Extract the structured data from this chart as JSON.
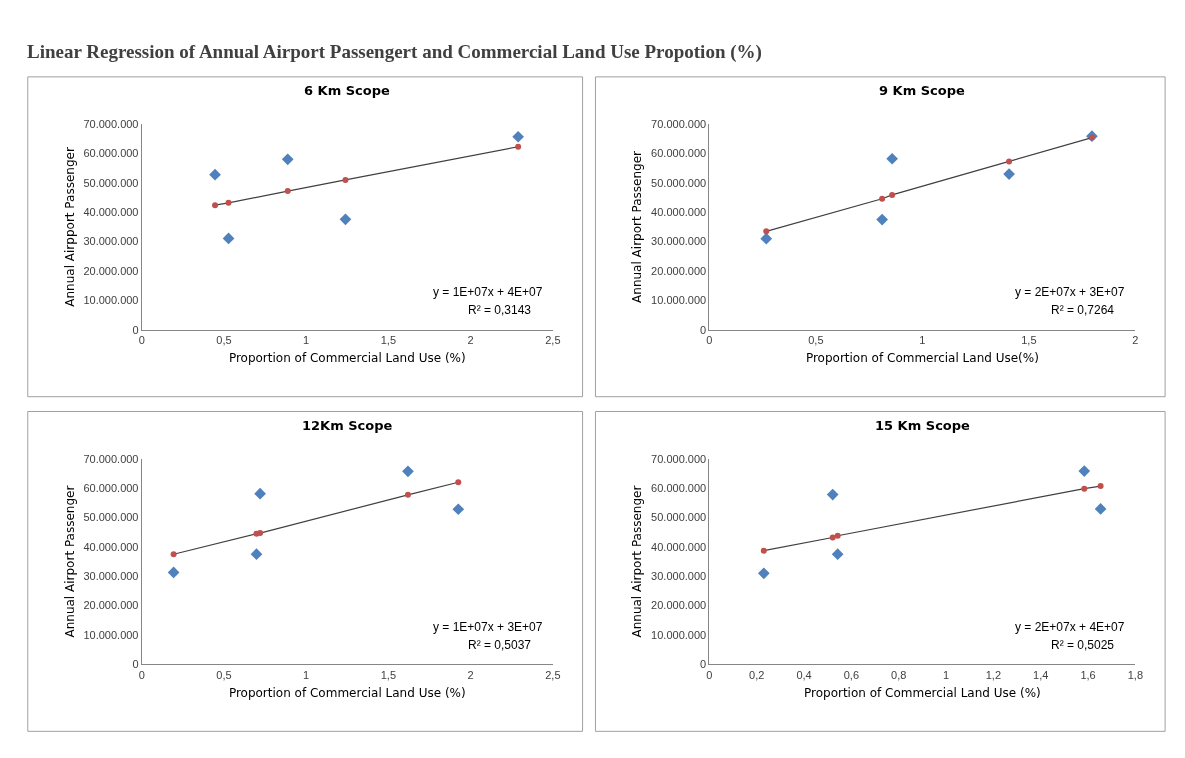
{
  "chart_data": [
    {
      "type": "scatter",
      "title": "6 Km Scope",
      "xlabel": "Proportion of Commercial Land Use (%)",
      "ylabel": "Annual Airpport Passenger",
      "annotations": [
        "Linear Regression of Annual Airport Passengert and Commercial Land Use Propotion (%)",
        "y = 1E+07x + 4E+07",
        "R² = 0,3143"
      ],
      "series": [
        {
          "color": "#4f81bd",
          "marker": "diamond",
          "x": [
            0.446,
            0.528,
            0.888,
            1.239,
            2.289
          ],
          "values": [
            52800000,
            31100000,
            58000000,
            37600000,
            65700000
          ]
        },
        {
          "type": "line",
          "color": "#c0504d",
          "marker": "circle",
          "x": [
            0.446,
            0.528,
            0.888,
            1.239,
            2.289
          ],
          "values": [
            42400000,
            43200000,
            47200000,
            51000000,
            62300000
          ]
        }
      ],
      "xlim": [
        0,
        2.5
      ],
      "xticks": [
        0,
        {
          "value": 0.5,
          "label": "0,5"
        },
        1,
        {
          "value": 1.5,
          "label": "1,5"
        },
        2,
        {
          "value": 2.5,
          "label": "2,5"
        }
      ],
      "ylim": [
        0,
        70000000
      ],
      "yticks": [
        0,
        {
          "value": 10000000,
          "label": "10.000.000"
        },
        {
          "value": 20000000,
          "label": "20.000.000"
        },
        {
          "value": 30000000,
          "label": "30.000.000"
        },
        {
          "value": 40000000,
          "label": "40.000.000"
        },
        {
          "value": 50000000,
          "label": "50.000.000"
        },
        {
          "value": 60000000,
          "label": "60.000.000"
        },
        {
          "value": 70000000,
          "label": "70.000.000"
        }
      ]
    },
    {
      "type": "scatter",
      "title": "9 Km Scope",
      "xlabel": "Proportion of Commercial Land Use(%)",
      "ylabel": "Annual Airport Passenger",
      "annotations": [
        "y = 2E+07x + 3E+07",
        "R² = 0,7264"
      ],
      "series": [
        {
          "color": "#4f81bd",
          "marker": "diamond",
          "x": [
            0.267,
            0.811,
            0.858,
            1.407,
            1.796
          ],
          "values": [
            31000000,
            37500000,
            58200000,
            53000000,
            65900000
          ]
        },
        {
          "type": "line",
          "color": "#c0504d",
          "marker": "circle",
          "x": [
            0.267,
            0.811,
            0.858,
            1.407,
            1.796
          ],
          "values": [
            33500000,
            44600000,
            45900000,
            57300000,
            65400000
          ]
        }
      ],
      "xlim": [
        0,
        2
      ],
      "xticks": [
        0,
        {
          "value": 0.5,
          "label": "0,5"
        },
        1,
        {
          "value": 1.5,
          "label": "1,5"
        },
        2
      ],
      "ylim": [
        0,
        70000000
      ],
      "yticks": [
        0,
        {
          "value": 10000000,
          "label": "10.000.000"
        },
        {
          "value": 20000000,
          "label": "20.000.000"
        },
        {
          "value": 30000000,
          "label": "30.000.000"
        },
        {
          "value": 40000000,
          "label": "40.000.000"
        },
        {
          "value": 50000000,
          "label": "50.000.000"
        },
        {
          "value": 60000000,
          "label": "60.000.000"
        },
        {
          "value": 70000000,
          "label": "70.000.000"
        }
      ]
    },
    {
      "type": "scatter",
      "title": "12Km Scope",
      "xlabel": "Proportion of Commercial Land Use (%)",
      "ylabel": "Annual Airport Passenger",
      "annotations": [
        "y = 1E+07x + 3E+07",
        "R² = 0,5037"
      ],
      "series": [
        {
          "color": "#4f81bd",
          "marker": "diamond",
          "x": [
            0.194,
            0.698,
            0.72,
            1.619,
            1.925
          ],
          "values": [
            31300000,
            37500000,
            58100000,
            65700000,
            52800000
          ]
        },
        {
          "type": "line",
          "color": "#c0504d",
          "marker": "circle",
          "x": [
            0.194,
            0.698,
            0.72,
            1.619,
            1.925
          ],
          "values": [
            37500000,
            44500000,
            44700000,
            57700000,
            62000000
          ]
        }
      ],
      "xlim": [
        0,
        2.5
      ],
      "xticks": [
        0,
        {
          "value": 0.5,
          "label": "0,5"
        },
        1,
        {
          "value": 1.5,
          "label": "1,5"
        },
        2,
        {
          "value": 2.5,
          "label": "2,5"
        }
      ],
      "ylim": [
        0,
        70000000
      ],
      "yticks": [
        0,
        {
          "value": 10000000,
          "label": "10.000.000"
        },
        {
          "value": 20000000,
          "label": "20.000.000"
        },
        {
          "value": 30000000,
          "label": "30.000.000"
        },
        {
          "value": 40000000,
          "label": "40.000.000"
        },
        {
          "value": 50000000,
          "label": "50.000.000"
        },
        {
          "value": 60000000,
          "label": "60.000.000"
        },
        {
          "value": 70000000,
          "label": "70.000.000"
        }
      ]
    },
    {
      "type": "scatter",
      "title": "15 Km Scope",
      "xlabel": "Proportion of Commercial Land Use (%)",
      "ylabel": "Annual Airport Passenger",
      "annotations": [
        "y = 2E+07x + 4E+07",
        "R² = 0,5025"
      ],
      "series": [
        {
          "color": "#4f81bd",
          "marker": "diamond",
          "x": [
            0.23,
            0.521,
            0.542,
            1.584,
            1.653
          ],
          "values": [
            31000000,
            57800000,
            37500000,
            65800000,
            52900000
          ]
        },
        {
          "type": "line",
          "color": "#c0504d",
          "marker": "circle",
          "x": [
            0.23,
            0.521,
            0.542,
            1.584,
            1.653
          ],
          "values": [
            38700000,
            43200000,
            43800000,
            59800000,
            60700000
          ]
        }
      ],
      "xlim": [
        0,
        1.8
      ],
      "xticks": [
        0,
        {
          "value": 0.2,
          "label": "0,2"
        },
        {
          "value": 0.4,
          "label": "0,4"
        },
        {
          "value": 0.6,
          "label": "0,6"
        },
        {
          "value": 0.8,
          "label": "0,8"
        },
        1,
        {
          "value": 1.2,
          "label": "1,2"
        },
        {
          "value": 1.4,
          "label": "1,4"
        },
        {
          "value": 1.6,
          "label": "1,6"
        },
        {
          "value": 1.8,
          "label": "1,8"
        }
      ],
      "ylim": [
        0,
        70000000
      ],
      "yticks": [
        0,
        {
          "value": 10000000,
          "label": "10.000.000"
        },
        {
          "value": 20000000,
          "label": "20.000.000"
        },
        {
          "value": 30000000,
          "label": "30.000.000"
        },
        {
          "value": 40000000,
          "label": "40.000.000"
        },
        {
          "value": 50000000,
          "label": "50.000.000"
        },
        {
          "value": 60000000,
          "label": "60.000.000"
        },
        {
          "value": 70000000,
          "label": "70.000.000"
        }
      ]
    }
  ]
}
